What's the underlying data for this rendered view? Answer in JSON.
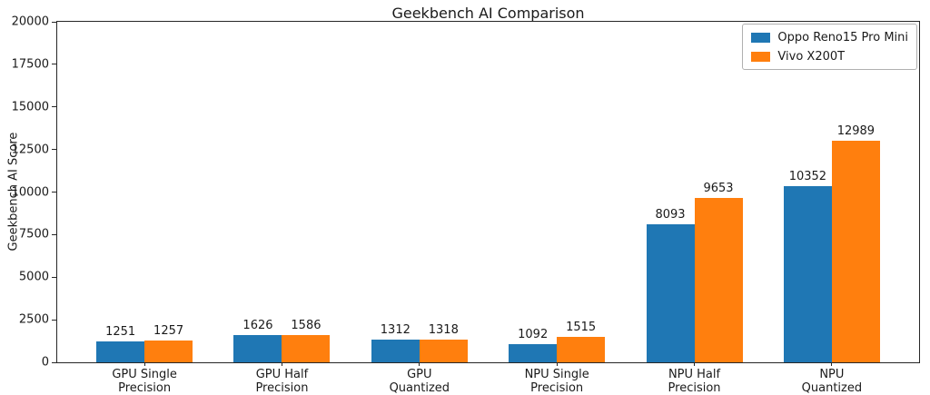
{
  "title": "Geekbench AI Comparison",
  "chart_data": {
    "type": "bar",
    "title": "Geekbench AI Comparison",
    "xlabel": "",
    "ylabel": "Geekbench AI Score",
    "categories": [
      "GPU Single\nPrecision",
      "GPU Half\nPrecision",
      "GPU\nQuantized",
      "NPU Single\nPrecision",
      "NPU Half\nPrecision",
      "NPU\nQuantized"
    ],
    "series": [
      {
        "name": "Oppo Reno15 Pro Mini",
        "color": "#1f77b4",
        "values": [
          1251,
          1626,
          1312,
          1092,
          8093,
          10352
        ]
      },
      {
        "name": "Vivo X200T",
        "color": "#ff7f0e",
        "values": [
          1257,
          1586,
          1318,
          1515,
          9653,
          12989
        ]
      }
    ],
    "ylim": [
      0,
      20000
    ],
    "yticks": [
      0,
      2500,
      5000,
      7500,
      10000,
      12500,
      15000,
      17500,
      20000
    ],
    "bar_width": 0.35,
    "group_edge_padding": 0.635,
    "grid": false,
    "legend_position": "upper right",
    "axis_color": "#262626",
    "background_color": "#ffffff"
  }
}
